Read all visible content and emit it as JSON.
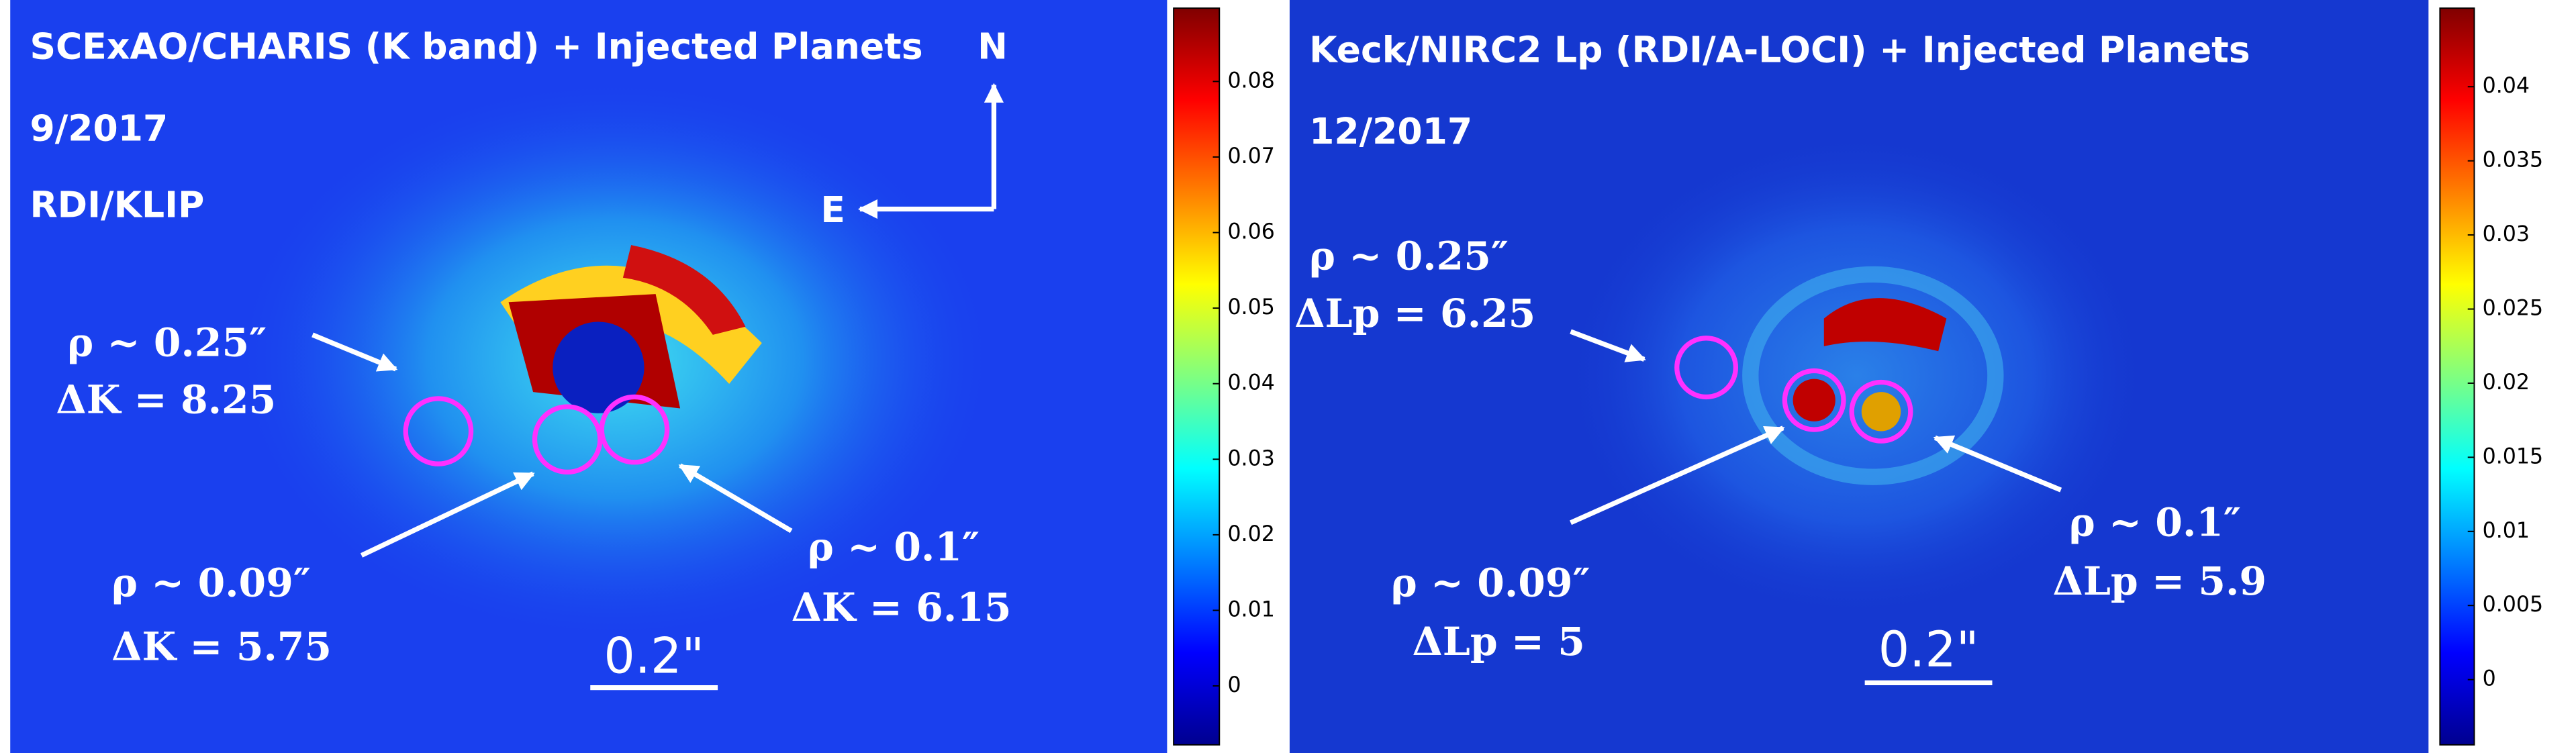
{
  "panels": [
    {
      "title": "SCExAO/CHARIS (K band) + Injected Planets",
      "date": "9/2017",
      "method": "RDI/KLIP",
      "compass": {
        "north": "N",
        "east": "E"
      },
      "annotations": [
        {
          "rho": "ρ ~ 0.25″",
          "contrast": "ΔK = 8.25"
        },
        {
          "rho": "ρ ~ 0.09″",
          "contrast": "ΔK = 5.75"
        },
        {
          "rho": "ρ ~ 0.1″",
          "contrast": "ΔK = 6.15"
        }
      ],
      "scale_bar": "0.2\"",
      "colorbar": {
        "clim": [
          -0.0078,
          0.0897
        ],
        "ticks": [
          0,
          0.01,
          0.02,
          0.03,
          0.04,
          0.05,
          0.06,
          0.07,
          0.08
        ]
      }
    },
    {
      "title": "Keck/NIRC2 Lp (RDI/A-LOCI) + Injected Planets",
      "date": "12/2017",
      "annotations": [
        {
          "rho": "ρ ~ 0.25″",
          "contrast": "ΔLp = 6.25"
        },
        {
          "rho": "ρ ~ 0.09″",
          "contrast": "ΔLp = 5"
        },
        {
          "rho": "ρ ~ 0.1″",
          "contrast": "ΔLp = 5.9"
        }
      ],
      "scale_bar": "0.2\"",
      "colorbar": {
        "clim": [
          -0.0044,
          0.0453
        ],
        "ticks": [
          0,
          0.005,
          0.01,
          0.015,
          0.02,
          0.025,
          0.03,
          0.035,
          0.04
        ]
      }
    }
  ]
}
